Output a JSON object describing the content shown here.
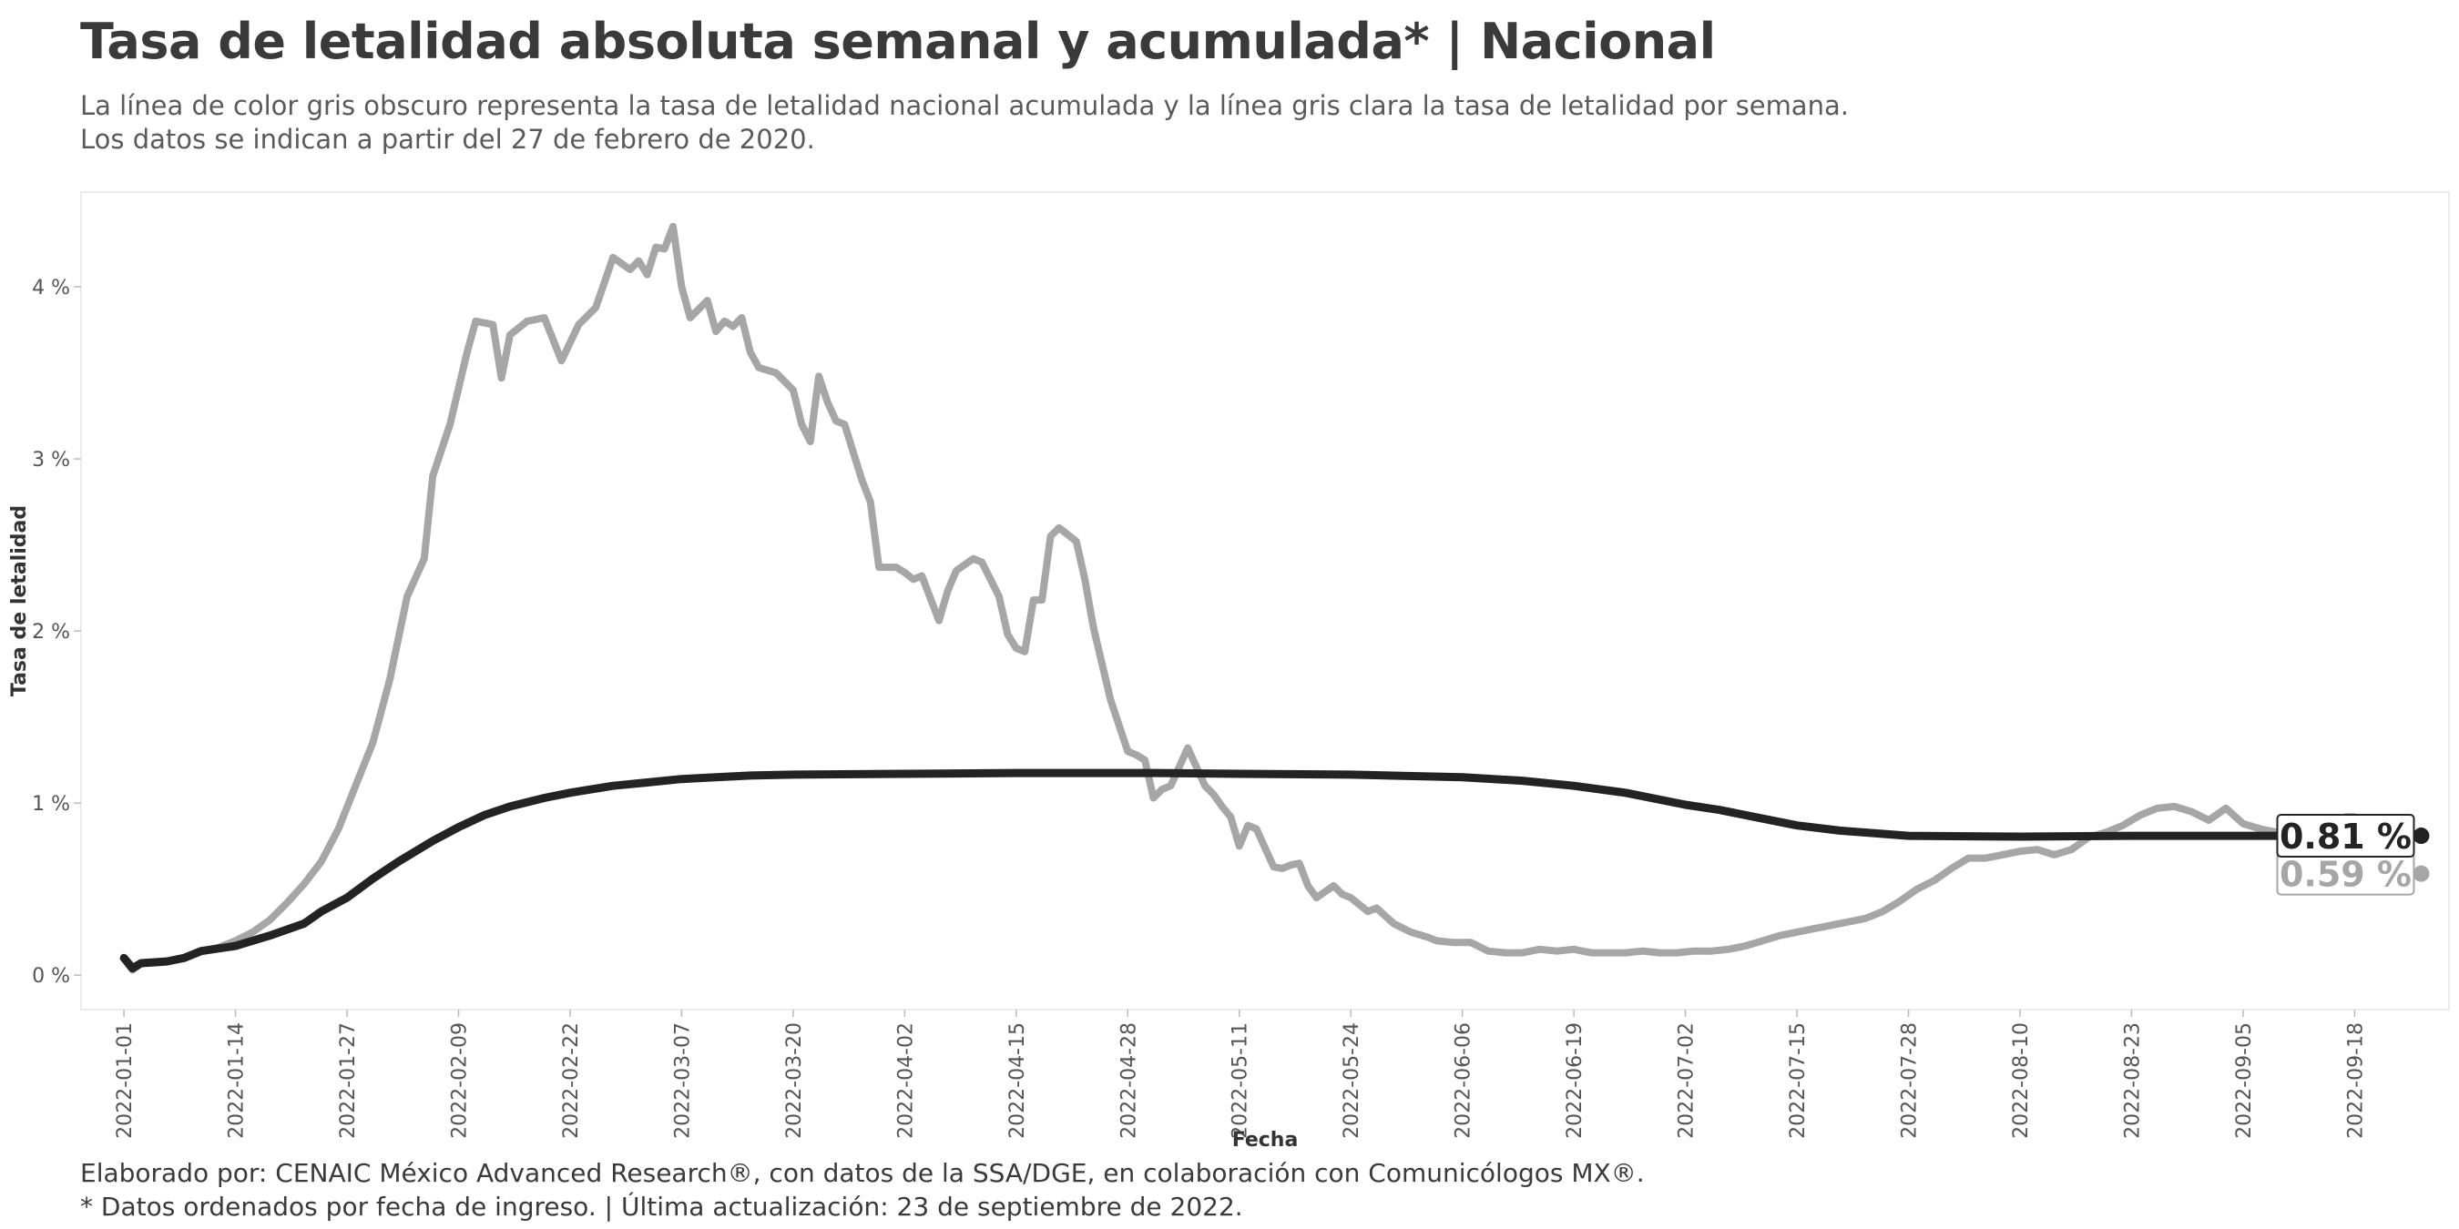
{
  "header": {
    "title": "Tasa de letalidad absoluta semanal y acumulada* | Nacional",
    "subtitle_1": "La línea de color gris obscuro representa la tasa de letalidad nacional acumulada y la línea gris clara la tasa de letalidad por semana.",
    "subtitle_2": "Los datos se indican a partir del 27 de febrero de 2020."
  },
  "footer": {
    "caption_1": "Elaborado por: CENAIC México Advanced Research®, con datos de la SSA/DGE, en colaboración con Comunicólogos MX®.",
    "caption_2": "* Datos ordenados por fecha de ingreso. | Última actualización: 23 de septiembre de 2022."
  },
  "chart_data": {
    "type": "line",
    "xlabel": "Fecha",
    "ylabel": "Tasa de letalidad",
    "x_start": "2022-01-01",
    "x_end": "2022-09-23",
    "xlim": [
      "2021-12-27",
      "2022-09-29"
    ],
    "ylim": [
      -0.2,
      4.55
    ],
    "x_ticks": [
      "2022-01-01",
      "2022-01-14",
      "2022-01-27",
      "2022-02-09",
      "2022-02-22",
      "2022-03-07",
      "2022-03-20",
      "2022-04-02",
      "2022-04-15",
      "2022-04-28",
      "2022-05-11",
      "2022-05-24",
      "2022-06-06",
      "2022-06-19",
      "2022-07-02",
      "2022-07-15",
      "2022-07-28",
      "2022-08-10",
      "2022-08-23",
      "2022-09-05",
      "2022-09-18"
    ],
    "y_ticks": [
      0,
      1,
      2,
      3,
      4
    ],
    "y_tick_labels": [
      "0 %",
      "1 %",
      "2 %",
      "3 %",
      "4 %"
    ],
    "grid": false,
    "colors": {
      "acumulada": "#232323",
      "semanal": "#a6a6a6",
      "panel_border": "#ececec"
    },
    "end_labels": {
      "acumulada": "0.81 %",
      "semanal": "0.59 %"
    },
    "series": [
      {
        "key": "semanal",
        "points": [
          [
            "2022-01-01",
            0.1
          ],
          [
            "2022-01-02",
            0.03
          ],
          [
            "2022-01-03",
            0.07
          ],
          [
            "2022-01-06",
            0.08
          ],
          [
            "2022-01-08",
            0.1
          ],
          [
            "2022-01-10",
            0.14
          ],
          [
            "2022-01-12",
            0.16
          ],
          [
            "2022-01-14",
            0.2
          ],
          [
            "2022-01-16",
            0.25
          ],
          [
            "2022-01-18",
            0.32
          ],
          [
            "2022-01-20",
            0.42
          ],
          [
            "2022-01-22",
            0.53
          ],
          [
            "2022-01-24",
            0.66
          ],
          [
            "2022-01-26",
            0.85
          ],
          [
            "2022-01-28",
            1.1
          ],
          [
            "2022-01-30",
            1.35
          ],
          [
            "2022-02-01",
            1.72
          ],
          [
            "2022-02-03",
            2.2
          ],
          [
            "2022-02-05",
            2.42
          ],
          [
            "2022-02-06",
            2.9
          ],
          [
            "2022-02-08",
            3.2
          ],
          [
            "2022-02-10",
            3.62
          ],
          [
            "2022-02-11",
            3.8
          ],
          [
            "2022-02-13",
            3.78
          ],
          [
            "2022-02-14",
            3.47
          ],
          [
            "2022-02-15",
            3.72
          ],
          [
            "2022-02-17",
            3.8
          ],
          [
            "2022-02-19",
            3.82
          ],
          [
            "2022-02-21",
            3.57
          ],
          [
            "2022-02-23",
            3.78
          ],
          [
            "2022-02-25",
            3.88
          ],
          [
            "2022-02-27",
            4.17
          ],
          [
            "2022-03-01",
            4.1
          ],
          [
            "2022-03-02",
            4.15
          ],
          [
            "2022-03-03",
            4.07
          ],
          [
            "2022-03-04",
            4.23
          ],
          [
            "2022-03-05",
            4.22
          ],
          [
            "2022-03-06",
            4.35
          ],
          [
            "2022-03-07",
            4.0
          ],
          [
            "2022-03-08",
            3.82
          ],
          [
            "2022-03-10",
            3.92
          ],
          [
            "2022-03-11",
            3.74
          ],
          [
            "2022-03-12",
            3.8
          ],
          [
            "2022-03-13",
            3.77
          ],
          [
            "2022-03-14",
            3.82
          ],
          [
            "2022-03-15",
            3.62
          ],
          [
            "2022-03-16",
            3.53
          ],
          [
            "2022-03-18",
            3.5
          ],
          [
            "2022-03-20",
            3.4
          ],
          [
            "2022-03-21",
            3.2
          ],
          [
            "2022-03-22",
            3.1
          ],
          [
            "2022-03-23",
            3.48
          ],
          [
            "2022-03-24",
            3.33
          ],
          [
            "2022-03-25",
            3.22
          ],
          [
            "2022-03-26",
            3.2
          ],
          [
            "2022-03-28",
            2.88
          ],
          [
            "2022-03-29",
            2.75
          ],
          [
            "2022-03-30",
            2.37
          ],
          [
            "2022-04-01",
            2.37
          ],
          [
            "2022-04-02",
            2.34
          ],
          [
            "2022-04-03",
            2.3
          ],
          [
            "2022-04-04",
            2.32
          ],
          [
            "2022-04-06",
            2.06
          ],
          [
            "2022-04-07",
            2.23
          ],
          [
            "2022-04-08",
            2.35
          ],
          [
            "2022-04-10",
            2.42
          ],
          [
            "2022-04-11",
            2.4
          ],
          [
            "2022-04-12",
            2.3
          ],
          [
            "2022-04-13",
            2.2
          ],
          [
            "2022-04-14",
            1.98
          ],
          [
            "2022-04-15",
            1.9
          ],
          [
            "2022-04-16",
            1.88
          ],
          [
            "2022-04-17",
            2.18
          ],
          [
            "2022-04-18",
            2.18
          ],
          [
            "2022-04-19",
            2.55
          ],
          [
            "2022-04-20",
            2.6
          ],
          [
            "2022-04-22",
            2.52
          ],
          [
            "2022-04-23",
            2.3
          ],
          [
            "2022-04-24",
            2.02
          ],
          [
            "2022-04-26",
            1.6
          ],
          [
            "2022-04-28",
            1.3
          ],
          [
            "2022-04-29",
            1.28
          ],
          [
            "2022-04-30",
            1.25
          ],
          [
            "2022-05-01",
            1.03
          ],
          [
            "2022-05-02",
            1.08
          ],
          [
            "2022-05-03",
            1.1
          ],
          [
            "2022-05-05",
            1.32
          ],
          [
            "2022-05-07",
            1.1
          ],
          [
            "2022-05-08",
            1.05
          ],
          [
            "2022-05-09",
            0.98
          ],
          [
            "2022-05-10",
            0.92
          ],
          [
            "2022-05-11",
            0.75
          ],
          [
            "2022-05-12",
            0.87
          ],
          [
            "2022-05-13",
            0.85
          ],
          [
            "2022-05-15",
            0.63
          ],
          [
            "2022-05-16",
            0.62
          ],
          [
            "2022-05-17",
            0.64
          ],
          [
            "2022-05-18",
            0.65
          ],
          [
            "2022-05-19",
            0.52
          ],
          [
            "2022-05-20",
            0.45
          ],
          [
            "2022-05-22",
            0.52
          ],
          [
            "2022-05-23",
            0.47
          ],
          [
            "2022-05-24",
            0.45
          ],
          [
            "2022-05-26",
            0.37
          ],
          [
            "2022-05-27",
            0.39
          ],
          [
            "2022-05-29",
            0.3
          ],
          [
            "2022-05-31",
            0.25
          ],
          [
            "2022-06-02",
            0.22
          ],
          [
            "2022-06-03",
            0.2
          ],
          [
            "2022-06-05",
            0.19
          ],
          [
            "2022-06-07",
            0.19
          ],
          [
            "2022-06-09",
            0.14
          ],
          [
            "2022-06-11",
            0.13
          ],
          [
            "2022-06-13",
            0.13
          ],
          [
            "2022-06-15",
            0.15
          ],
          [
            "2022-06-17",
            0.14
          ],
          [
            "2022-06-19",
            0.15
          ],
          [
            "2022-06-21",
            0.13
          ],
          [
            "2022-06-23",
            0.13
          ],
          [
            "2022-06-25",
            0.13
          ],
          [
            "2022-06-27",
            0.14
          ],
          [
            "2022-06-29",
            0.13
          ],
          [
            "2022-07-01",
            0.13
          ],
          [
            "2022-07-03",
            0.14
          ],
          [
            "2022-07-05",
            0.14
          ],
          [
            "2022-07-07",
            0.15
          ],
          [
            "2022-07-09",
            0.17
          ],
          [
            "2022-07-11",
            0.2
          ],
          [
            "2022-07-13",
            0.23
          ],
          [
            "2022-07-15",
            0.25
          ],
          [
            "2022-07-17",
            0.27
          ],
          [
            "2022-07-19",
            0.29
          ],
          [
            "2022-07-21",
            0.31
          ],
          [
            "2022-07-23",
            0.33
          ],
          [
            "2022-07-25",
            0.37
          ],
          [
            "2022-07-27",
            0.43
          ],
          [
            "2022-07-29",
            0.5
          ],
          [
            "2022-07-31",
            0.55
          ],
          [
            "2022-08-02",
            0.62
          ],
          [
            "2022-08-04",
            0.68
          ],
          [
            "2022-08-06",
            0.68
          ],
          [
            "2022-08-08",
            0.7
          ],
          [
            "2022-08-10",
            0.72
          ],
          [
            "2022-08-12",
            0.73
          ],
          [
            "2022-08-14",
            0.7
          ],
          [
            "2022-08-16",
            0.73
          ],
          [
            "2022-08-18",
            0.8
          ],
          [
            "2022-08-20",
            0.83
          ],
          [
            "2022-08-22",
            0.87
          ],
          [
            "2022-08-24",
            0.93
          ],
          [
            "2022-08-26",
            0.97
          ],
          [
            "2022-08-28",
            0.98
          ],
          [
            "2022-08-30",
            0.95
          ],
          [
            "2022-09-01",
            0.9
          ],
          [
            "2022-09-03",
            0.97
          ],
          [
            "2022-09-05",
            0.88
          ],
          [
            "2022-09-07",
            0.85
          ],
          [
            "2022-09-09",
            0.83
          ],
          [
            "2022-09-12",
            0.85
          ],
          [
            "2022-09-14",
            0.88
          ],
          [
            "2022-09-16",
            0.9
          ],
          [
            "2022-09-17",
            0.92
          ],
          [
            "2022-09-18",
            0.92
          ],
          [
            "2022-09-19",
            0.85
          ],
          [
            "2022-09-20",
            0.8
          ],
          [
            "2022-09-21",
            0.72
          ],
          [
            "2022-09-22",
            0.65
          ],
          [
            "2022-09-23",
            0.59
          ]
        ]
      },
      {
        "key": "acumulada",
        "points": [
          [
            "2022-01-01",
            0.1
          ],
          [
            "2022-01-02",
            0.04
          ],
          [
            "2022-01-03",
            0.07
          ],
          [
            "2022-01-06",
            0.08
          ],
          [
            "2022-01-08",
            0.1
          ],
          [
            "2022-01-10",
            0.14
          ],
          [
            "2022-01-14",
            0.17
          ],
          [
            "2022-01-18",
            0.23
          ],
          [
            "2022-01-22",
            0.3
          ],
          [
            "2022-01-24",
            0.37
          ],
          [
            "2022-01-27",
            0.45
          ],
          [
            "2022-01-30",
            0.56
          ],
          [
            "2022-02-02",
            0.66
          ],
          [
            "2022-02-06",
            0.78
          ],
          [
            "2022-02-09",
            0.86
          ],
          [
            "2022-02-12",
            0.93
          ],
          [
            "2022-02-15",
            0.98
          ],
          [
            "2022-02-19",
            1.03
          ],
          [
            "2022-02-22",
            1.06
          ],
          [
            "2022-02-27",
            1.1
          ],
          [
            "2022-03-03",
            1.12
          ],
          [
            "2022-03-07",
            1.14
          ],
          [
            "2022-03-15",
            1.16
          ],
          [
            "2022-03-20",
            1.165
          ],
          [
            "2022-04-02",
            1.17
          ],
          [
            "2022-04-15",
            1.175
          ],
          [
            "2022-05-01",
            1.175
          ],
          [
            "2022-05-11",
            1.17
          ],
          [
            "2022-05-24",
            1.165
          ],
          [
            "2022-06-06",
            1.15
          ],
          [
            "2022-06-13",
            1.13
          ],
          [
            "2022-06-19",
            1.1
          ],
          [
            "2022-06-25",
            1.06
          ],
          [
            "2022-07-02",
            0.99
          ],
          [
            "2022-07-06",
            0.96
          ],
          [
            "2022-07-10",
            0.92
          ],
          [
            "2022-07-15",
            0.87
          ],
          [
            "2022-07-20",
            0.84
          ],
          [
            "2022-07-28",
            0.81
          ],
          [
            "2022-08-10",
            0.805
          ],
          [
            "2022-08-23",
            0.81
          ],
          [
            "2022-09-05",
            0.81
          ],
          [
            "2022-09-18",
            0.81
          ],
          [
            "2022-09-23",
            0.81
          ]
        ]
      }
    ]
  }
}
